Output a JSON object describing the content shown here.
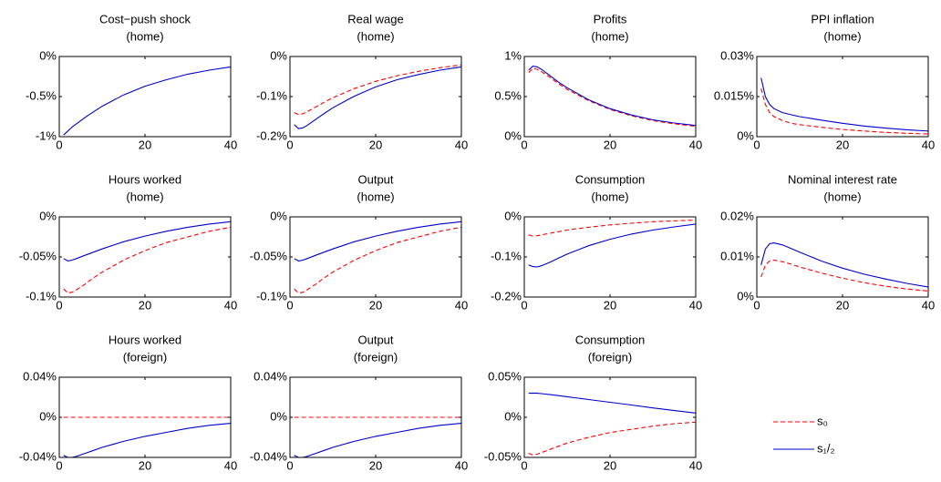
{
  "chart_data": [
    {
      "type": "line",
      "title": "Cost−push shock",
      "subtitle": "(home)",
      "x": [
        1,
        2,
        3,
        4,
        6,
        8,
        10,
        15,
        20,
        25,
        30,
        35,
        40
      ],
      "xlim": [
        0,
        40
      ],
      "xticks": [
        0,
        20,
        40
      ],
      "ylim": [
        -1,
        0
      ],
      "yticks": [
        {
          "value": -1,
          "label": "-1%"
        },
        {
          "value": -0.5,
          "label": "-0.5%"
        },
        {
          "value": 0,
          "label": "0%"
        }
      ],
      "series": [
        {
          "color": "#0000cc",
          "style": "solid",
          "values": [
            -0.98,
            -0.93,
            -0.88,
            -0.84,
            -0.76,
            -0.69,
            -0.62,
            -0.48,
            -0.37,
            -0.29,
            -0.22,
            -0.17,
            -0.13
          ]
        }
      ]
    },
    {
      "type": "line",
      "title": "Real wage",
      "subtitle": "(home)",
      "x": [
        1,
        2,
        3,
        4,
        6,
        8,
        10,
        15,
        20,
        25,
        30,
        35,
        40
      ],
      "xlim": [
        0,
        40
      ],
      "xticks": [
        0,
        20,
        40
      ],
      "ylim": [
        -0.2,
        0
      ],
      "yticks": [
        {
          "value": -0.2,
          "label": "-0.2%"
        },
        {
          "value": -0.1,
          "label": "-0.1%"
        },
        {
          "value": 0,
          "label": "0%"
        }
      ],
      "series": [
        {
          "color": "#ff0000",
          "style": "dashed",
          "values": [
            -0.14,
            -0.145,
            -0.143,
            -0.138,
            -0.126,
            -0.114,
            -0.103,
            -0.08,
            -0.062,
            -0.048,
            -0.037,
            -0.028,
            -0.021
          ]
        },
        {
          "color": "#0000cc",
          "style": "solid",
          "values": [
            -0.17,
            -0.18,
            -0.178,
            -0.172,
            -0.157,
            -0.142,
            -0.128,
            -0.099,
            -0.076,
            -0.058,
            -0.045,
            -0.034,
            -0.026
          ]
        }
      ]
    },
    {
      "type": "line",
      "title": "Profits",
      "subtitle": "(home)",
      "x": [
        1,
        2,
        3,
        4,
        6,
        8,
        10,
        15,
        20,
        25,
        30,
        35,
        40
      ],
      "xlim": [
        0,
        40
      ],
      "xticks": [
        0,
        20,
        40
      ],
      "ylim": [
        0,
        1
      ],
      "yticks": [
        {
          "value": 0,
          "label": "0%"
        },
        {
          "value": 0.5,
          "label": "0.5%"
        },
        {
          "value": 1,
          "label": "1%"
        }
      ],
      "series": [
        {
          "color": "#ff0000",
          "style": "dashed",
          "values": [
            0.8,
            0.85,
            0.84,
            0.81,
            0.74,
            0.66,
            0.59,
            0.45,
            0.34,
            0.26,
            0.2,
            0.16,
            0.13
          ]
        },
        {
          "color": "#0000cc",
          "style": "solid",
          "values": [
            0.83,
            0.88,
            0.87,
            0.84,
            0.76,
            0.68,
            0.61,
            0.46,
            0.35,
            0.27,
            0.21,
            0.17,
            0.14
          ]
        }
      ]
    },
    {
      "type": "line",
      "title": "PPI inflation",
      "subtitle": "(home)",
      "x": [
        1,
        2,
        3,
        4,
        6,
        8,
        10,
        15,
        20,
        25,
        30,
        35,
        40
      ],
      "xlim": [
        0,
        40
      ],
      "xticks": [
        0,
        20,
        40
      ],
      "ylim": [
        0,
        0.03
      ],
      "yticks": [
        {
          "value": 0,
          "label": "0%"
        },
        {
          "value": 0.015,
          "label": "0.015%"
        },
        {
          "value": 0.03,
          "label": "0.03%"
        }
      ],
      "series": [
        {
          "color": "#ff0000",
          "style": "dashed",
          "values": [
            0.018,
            0.012,
            0.009,
            0.0075,
            0.006,
            0.005,
            0.0045,
            0.0035,
            0.0027,
            0.0021,
            0.0016,
            0.0013,
            0.001
          ]
        },
        {
          "color": "#0000cc",
          "style": "solid",
          "values": [
            0.022,
            0.015,
            0.012,
            0.0105,
            0.009,
            0.0082,
            0.0075,
            0.0062,
            0.005,
            0.004,
            0.0032,
            0.0026,
            0.0021
          ]
        }
      ]
    },
    {
      "type": "line",
      "title": "Hours worked",
      "subtitle": "(home)",
      "x": [
        1,
        2,
        3,
        4,
        6,
        8,
        10,
        15,
        20,
        25,
        30,
        35,
        40
      ],
      "xlim": [
        0,
        40
      ],
      "xticks": [
        0,
        20,
        40
      ],
      "ylim": [
        -0.1,
        0
      ],
      "yticks": [
        {
          "value": -0.1,
          "label": "-0.1%"
        },
        {
          "value": -0.05,
          "label": "-0.05%"
        },
        {
          "value": 0,
          "label": "0%"
        }
      ],
      "series": [
        {
          "color": "#ff0000",
          "style": "dashed",
          "values": [
            -0.09,
            -0.095,
            -0.094,
            -0.091,
            -0.084,
            -0.076,
            -0.069,
            -0.054,
            -0.042,
            -0.032,
            -0.025,
            -0.018,
            -0.013
          ]
        },
        {
          "color": "#0000cc",
          "style": "solid",
          "values": [
            -0.052,
            -0.055,
            -0.054,
            -0.052,
            -0.048,
            -0.044,
            -0.04,
            -0.031,
            -0.024,
            -0.018,
            -0.013,
            -0.009,
            -0.006
          ]
        }
      ]
    },
    {
      "type": "line",
      "title": "Output",
      "subtitle": "(home)",
      "x": [
        1,
        2,
        3,
        4,
        6,
        8,
        10,
        15,
        20,
        25,
        30,
        35,
        40
      ],
      "xlim": [
        0,
        40
      ],
      "xticks": [
        0,
        20,
        40
      ],
      "ylim": [
        -0.1,
        0
      ],
      "yticks": [
        {
          "value": -0.1,
          "label": "-0.1%"
        },
        {
          "value": -0.05,
          "label": "-0.05%"
        },
        {
          "value": 0,
          "label": "0%"
        }
      ],
      "series": [
        {
          "color": "#ff0000",
          "style": "dashed",
          "values": [
            -0.09,
            -0.095,
            -0.094,
            -0.091,
            -0.084,
            -0.076,
            -0.069,
            -0.054,
            -0.042,
            -0.032,
            -0.025,
            -0.018,
            -0.013
          ]
        },
        {
          "color": "#0000cc",
          "style": "solid",
          "values": [
            -0.052,
            -0.055,
            -0.054,
            -0.052,
            -0.048,
            -0.044,
            -0.04,
            -0.031,
            -0.024,
            -0.018,
            -0.013,
            -0.009,
            -0.006
          ]
        }
      ]
    },
    {
      "type": "line",
      "title": "Consumption",
      "subtitle": "(home)",
      "x": [
        1,
        2,
        3,
        4,
        6,
        8,
        10,
        15,
        20,
        25,
        30,
        35,
        40
      ],
      "xlim": [
        0,
        40
      ],
      "xticks": [
        0,
        20,
        40
      ],
      "ylim": [
        -0.2,
        0
      ],
      "yticks": [
        {
          "value": -0.2,
          "label": "-0.2%"
        },
        {
          "value": -0.1,
          "label": "-0.1%"
        },
        {
          "value": 0,
          "label": "0%"
        }
      ],
      "series": [
        {
          "color": "#ff0000",
          "style": "dashed",
          "values": [
            -0.045,
            -0.048,
            -0.047,
            -0.045,
            -0.041,
            -0.037,
            -0.033,
            -0.026,
            -0.02,
            -0.016,
            -0.012,
            -0.01,
            -0.008
          ]
        },
        {
          "color": "#0000cc",
          "style": "solid",
          "values": [
            -0.12,
            -0.124,
            -0.125,
            -0.122,
            -0.113,
            -0.103,
            -0.093,
            -0.072,
            -0.056,
            -0.043,
            -0.033,
            -0.025,
            -0.018
          ]
        }
      ]
    },
    {
      "type": "line",
      "title": "Nominal interest rate",
      "subtitle": "(home)",
      "x": [
        1,
        2,
        3,
        4,
        6,
        8,
        10,
        15,
        20,
        25,
        30,
        35,
        40
      ],
      "xlim": [
        0,
        40
      ],
      "xticks": [
        0,
        20,
        40
      ],
      "ylim": [
        0,
        0.02
      ],
      "yticks": [
        {
          "value": 0,
          "label": "0%"
        },
        {
          "value": 0.01,
          "label": "0.01%"
        },
        {
          "value": 0.02,
          "label": "0.02%"
        }
      ],
      "series": [
        {
          "color": "#ff0000",
          "style": "dashed",
          "values": [
            0.005,
            0.008,
            0.009,
            0.0092,
            0.0088,
            0.0082,
            0.0075,
            0.006,
            0.0047,
            0.0036,
            0.0027,
            0.002,
            0.0015
          ]
        },
        {
          "color": "#0000cc",
          "style": "solid",
          "values": [
            0.008,
            0.012,
            0.0133,
            0.0135,
            0.013,
            0.0121,
            0.0112,
            0.009,
            0.0072,
            0.0057,
            0.0045,
            0.0034,
            0.0025
          ]
        }
      ]
    },
    {
      "type": "line",
      "title": "Hours worked",
      "subtitle": "(foreign)",
      "x": [
        1,
        2,
        3,
        4,
        6,
        8,
        10,
        15,
        20,
        25,
        30,
        35,
        40
      ],
      "xlim": [
        0,
        40
      ],
      "xticks": [
        0,
        20,
        40
      ],
      "ylim": [
        -0.04,
        0.04
      ],
      "yticks": [
        {
          "value": -0.04,
          "label": "-0.04%"
        },
        {
          "value": 0,
          "label": "0%"
        },
        {
          "value": 0.04,
          "label": "0.04%"
        }
      ],
      "series": [
        {
          "color": "#ff0000",
          "style": "dashed",
          "values": [
            0,
            0,
            0,
            0,
            0,
            0,
            0,
            0,
            0,
            0,
            0,
            0,
            0
          ]
        },
        {
          "color": "#0000cc",
          "style": "solid",
          "values": [
            -0.038,
            -0.04,
            -0.04,
            -0.039,
            -0.036,
            -0.033,
            -0.03,
            -0.024,
            -0.019,
            -0.015,
            -0.011,
            -0.008,
            -0.006
          ]
        }
      ]
    },
    {
      "type": "line",
      "title": "Output",
      "subtitle": "(foreign)",
      "x": [
        1,
        2,
        3,
        4,
        6,
        8,
        10,
        15,
        20,
        25,
        30,
        35,
        40
      ],
      "xlim": [
        0,
        40
      ],
      "xticks": [
        0,
        20,
        40
      ],
      "ylim": [
        -0.04,
        0.04
      ],
      "yticks": [
        {
          "value": -0.04,
          "label": "-0.04%"
        },
        {
          "value": 0,
          "label": "0%"
        },
        {
          "value": 0.04,
          "label": "0.04%"
        }
      ],
      "series": [
        {
          "color": "#ff0000",
          "style": "dashed",
          "values": [
            0,
            0,
            0,
            0,
            0,
            0,
            0,
            0,
            0,
            0,
            0,
            0,
            0
          ]
        },
        {
          "color": "#0000cc",
          "style": "solid",
          "values": [
            -0.038,
            -0.04,
            -0.04,
            -0.039,
            -0.036,
            -0.033,
            -0.03,
            -0.024,
            -0.019,
            -0.015,
            -0.011,
            -0.008,
            -0.006
          ]
        }
      ]
    },
    {
      "type": "line",
      "title": "Consumption",
      "subtitle": "(foreign)",
      "x": [
        1,
        2,
        3,
        4,
        6,
        8,
        10,
        15,
        20,
        25,
        30,
        35,
        40
      ],
      "xlim": [
        0,
        40
      ],
      "xticks": [
        0,
        20,
        40
      ],
      "ylim": [
        -0.05,
        0.05
      ],
      "yticks": [
        {
          "value": -0.05,
          "label": "-0.05%"
        },
        {
          "value": 0,
          "label": "0%"
        },
        {
          "value": 0.05,
          "label": "0.05%"
        }
      ],
      "series": [
        {
          "color": "#ff0000",
          "style": "dashed",
          "values": [
            -0.045,
            -0.047,
            -0.046,
            -0.044,
            -0.04,
            -0.036,
            -0.032,
            -0.025,
            -0.019,
            -0.015,
            -0.011,
            -0.008,
            -0.006
          ]
        },
        {
          "color": "#0000cc",
          "style": "solid",
          "values": [
            0.03,
            0.0302,
            0.03,
            0.0295,
            0.0283,
            0.027,
            0.0257,
            0.0222,
            0.0187,
            0.0153,
            0.0117,
            0.0084,
            0.0053
          ]
        }
      ]
    }
  ],
  "legend": [
    {
      "name": "s₀",
      "color": "#ff0000",
      "style": "dashed"
    },
    {
      "name": "s₁/₂",
      "color": "#0000cc",
      "style": "solid"
    }
  ]
}
